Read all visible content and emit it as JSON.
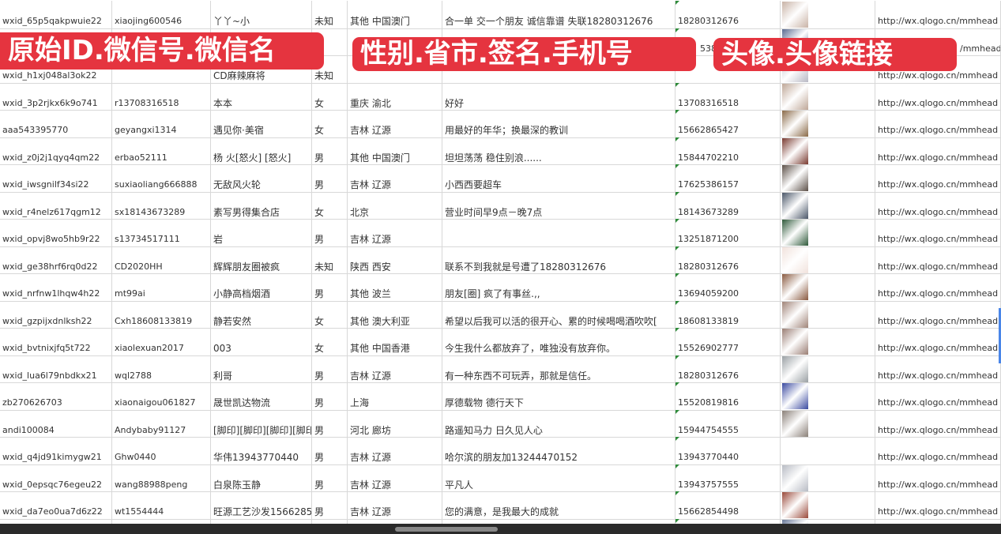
{
  "banners": {
    "left": "原始ID.微信号.微信名",
    "middle": "性别.省市.签名.手机号",
    "right": "头像.头像链接"
  },
  "columns": [
    "原始ID",
    "微信号",
    "微信名",
    "性别",
    "省市",
    "签名",
    "手机号",
    "头像",
    "头像链接"
  ],
  "rows": [
    {
      "id": "wxid_65p5qakpwuie22",
      "wx": "xiaojing600546",
      "name": "丫丫~小",
      "sex": "未知",
      "region": "其他 中国澳门",
      "sign": "合一单 交一个朋友 诚信靠谱 失联18280312676",
      "phone": "18280312676",
      "avatar": "#c9b3a6",
      "url": "http://wx.qlogo.cn/mmhead"
    },
    {
      "id": "",
      "wx": "",
      "name": "",
      "sex": "",
      "region": "",
      "sign": "",
      "phone": "5386",
      "avatar": "#5a6a90",
      "url": "/mmhead"
    },
    {
      "id": "wxid_h1xj048al3ok22",
      "wx": "",
      "name": "CD麻辣麻将",
      "sex": "未知",
      "region": "",
      "sign": "",
      "phone": "",
      "avatar": "#b9b9c4",
      "url": "http://wx.qlogo.cn/mmhead"
    },
    {
      "id": "wxid_3p2rjkx6k9o741",
      "wx": "r13708316518",
      "name": "本本",
      "sex": "女",
      "region": "重庆 渝北",
      "sign": "好好",
      "phone": "13708316518",
      "avatar": "#bfa797",
      "url": "http://wx.qlogo.cn/mmhead"
    },
    {
      "id": "aaa543395770",
      "wx": "geyangxi1314",
      "name": "遇见你·美宿",
      "sex": "女",
      "region": "吉林 辽源",
      "sign": "用最好的年华；换最深的教训",
      "phone": "15662865427",
      "avatar": "#8a6a48",
      "url": "http://wx.qlogo.cn/mmhead"
    },
    {
      "id": "wxid_z0j2j1qyq4qm22",
      "wx": "erbao52111",
      "name": "杨 火[怒火] [怒火]",
      "sex": "男",
      "region": "其他 中国澳门",
      "sign": "坦坦荡荡 稳住别浪......",
      "phone": "15844702210",
      "avatar": "#7a3a30",
      "url": "http://wx.qlogo.cn/mmhead"
    },
    {
      "id": "wxid_iwsgnilf34si22",
      "wx": "suxiaoliang666888",
      "name": "无敌风火轮",
      "sex": "男",
      "region": "吉林 辽源",
      "sign": "小西西要超车",
      "phone": "17625386157",
      "avatar": "#5c5048",
      "url": "http://wx.qlogo.cn/mmhead"
    },
    {
      "id": "wxid_r4nelz617qgm12",
      "wx": "sx18143673289",
      "name": "素写男得集合店",
      "sex": "女",
      "region": "北京",
      "sign": "营业时间早9点－晚7点",
      "phone": "18143673289",
      "avatar": "#4a5668",
      "url": "http://wx.qlogo.cn/mmhead"
    },
    {
      "id": "wxid_opvj8wo5hb9r22",
      "wx": "s13734517111",
      "name": "岩",
      "sex": "男",
      "region": "吉林 辽源",
      "sign": "",
      "phone": "13251871200",
      "avatar": "#2f5a3a",
      "url": "http://wx.qlogo.cn/mmhead"
    },
    {
      "id": "wxid_ge38hrf6rq0d22",
      "wx": "CD2020HH",
      "name": "辉辉朋友圈被疯",
      "sex": "未知",
      "region": "陕西 西安",
      "sign": "联系不到我就是号遭了18280312676",
      "phone": "18280312676",
      "avatar": "#f1e2dc",
      "url": "http://wx.qlogo.cn/mmhead"
    },
    {
      "id": "wxid_nrfnw1lhqw4h22",
      "wx": "mt99ai",
      "name": "小静高档烟酒",
      "sex": "男",
      "region": "其他 波兰",
      "sign": "朋友[圈] 疯了有事丝.,,",
      "phone": "13694059200",
      "avatar": "#8a5a40",
      "url": "http://wx.qlogo.cn/mmhead"
    },
    {
      "id": "wxid_gzpijxdnlksh22",
      "wx": "Cxh18608133819",
      "name": "静若安然",
      "sex": "女",
      "region": "其他 澳大利亚",
      "sign": "希望以后我可以活的很开心、累的时候喝喝酒吹吹[",
      "phone": "18608133819",
      "avatar": "#a08478",
      "url": "http://wx.qlogo.cn/mmhead"
    },
    {
      "id": "wxid_bvtnixjfq5t722",
      "wx": "xiaolexuan2017",
      "name": "003",
      "sex": "女",
      "region": "其他 中国香港",
      "sign": "今生我什么都放弃了，唯独没有放弃你。",
      "phone": "15526902777",
      "avatar": "#9a7e74",
      "url": "http://wx.qlogo.cn/mmhead"
    },
    {
      "id": "wxid_lua6l79nbdkx21",
      "wx": "wql2788",
      "name": "利哥",
      "sex": "男",
      "region": "吉林 辽源",
      "sign": "有一种东西不可玩弄，那就是信任。",
      "phone": "18280312676",
      "avatar": "#9aa0a4",
      "url": "http://wx.qlogo.cn/mmhead"
    },
    {
      "id": "zb270626703",
      "wx": "xiaonaigou061827",
      "name": "晟世凯达物流",
      "sex": "男",
      "region": "上海",
      "sign": "厚德载物 德行天下",
      "phone": "15520819816",
      "avatar": "#3a4aa0",
      "url": "http://wx.qlogo.cn/mmhead"
    },
    {
      "id": "andi100084",
      "wx": "Andybaby91127",
      "name": "[脚印][脚印][脚印][脚印]",
      "sex": "男",
      "region": "河北 廊坊",
      "sign": "路遥知马力 日久见人心",
      "phone": "15944754555",
      "avatar": "#8a8078",
      "url": "http://wx.qlogo.cn/mmhead"
    },
    {
      "id": "wxid_q4jd91kimygw21",
      "wx": "Ghw0440",
      "name": "华伟13943770440",
      "sex": "男",
      "region": "吉林 辽源",
      "sign": "哈尔滨的朋友加13244470152",
      "phone": "13943770440",
      "avatar": "#ffffff",
      "url": "http://wx.qlogo.cn/mmhead"
    },
    {
      "id": "wxid_0epsqc76egeu22",
      "wx": "wang88988peng",
      "name": "白泉陈玉静",
      "sex": "男",
      "region": "吉林 辽源",
      "sign": "平凡人",
      "phone": "13943757555",
      "avatar": "#b8bcc4",
      "url": "http://wx.qlogo.cn/mmhead"
    },
    {
      "id": "wxid_da7eo0ua7d6z22",
      "wx": "wt1554444",
      "name": "旺源工艺沙发15662854",
      "sex": "男",
      "region": "吉林 辽源",
      "sign": "您的满意，是我最大的成就",
      "phone": "15662854498",
      "avatar": "#9a4a3a",
      "url": "http://wx.qlogo.cn/mmhead"
    },
    {
      "id": "",
      "wx": "",
      "name": "",
      "sex": "",
      "region": "",
      "sign": "",
      "phone": "",
      "avatar": "#6a7a9a",
      "url": ""
    }
  ]
}
